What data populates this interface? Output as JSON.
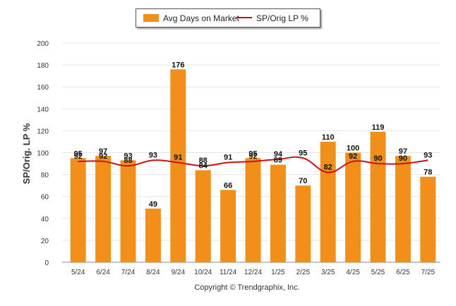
{
  "chart_data": {
    "type": "bar",
    "categories": [
      "5/24",
      "6/24",
      "7/24",
      "8/24",
      "9/24",
      "10/24",
      "11/24",
      "12/24",
      "1/25",
      "2/25",
      "3/25",
      "4/25",
      "5/25",
      "6/25",
      "7/25"
    ],
    "series": [
      {
        "name": "Avg Days on Market",
        "type": "bar",
        "color": "#f0901a",
        "values": [
          95,
          97,
          93,
          49,
          176,
          84,
          66,
          95,
          89,
          70,
          110,
          100,
          119,
          97,
          78
        ]
      },
      {
        "name": "SP/Orig LP %",
        "type": "line",
        "color": "#cc1111",
        "values": [
          92,
          92,
          88,
          93,
          91,
          88,
          91,
          92,
          94,
          95,
          82,
          92,
          90,
          90,
          93
        ]
      }
    ],
    "bar_labels": [
      "95",
      "97",
      "93",
      "49",
      "176",
      "84",
      "66",
      "95",
      "89",
      "70",
      "110",
      "100",
      "119",
      "97",
      "78"
    ],
    "line_labels": [
      "92",
      "92",
      "88",
      "93",
      "91",
      "88",
      "91",
      "92",
      "94",
      "95",
      "82",
      "92",
      "90",
      "90",
      "93"
    ],
    "ylabel": "SP/Orig. LP %",
    "ylim": [
      0,
      200
    ],
    "yticks": [
      0,
      20,
      40,
      60,
      80,
      100,
      120,
      140,
      160,
      180,
      200
    ],
    "grid": true,
    "legend_position": "top-center"
  },
  "legend": {
    "bar_label": "Avg Days on Market",
    "line_label": "SP/Orig LP %"
  },
  "footer": {
    "copyright": "Copyright © Trendgraphix, Inc."
  }
}
